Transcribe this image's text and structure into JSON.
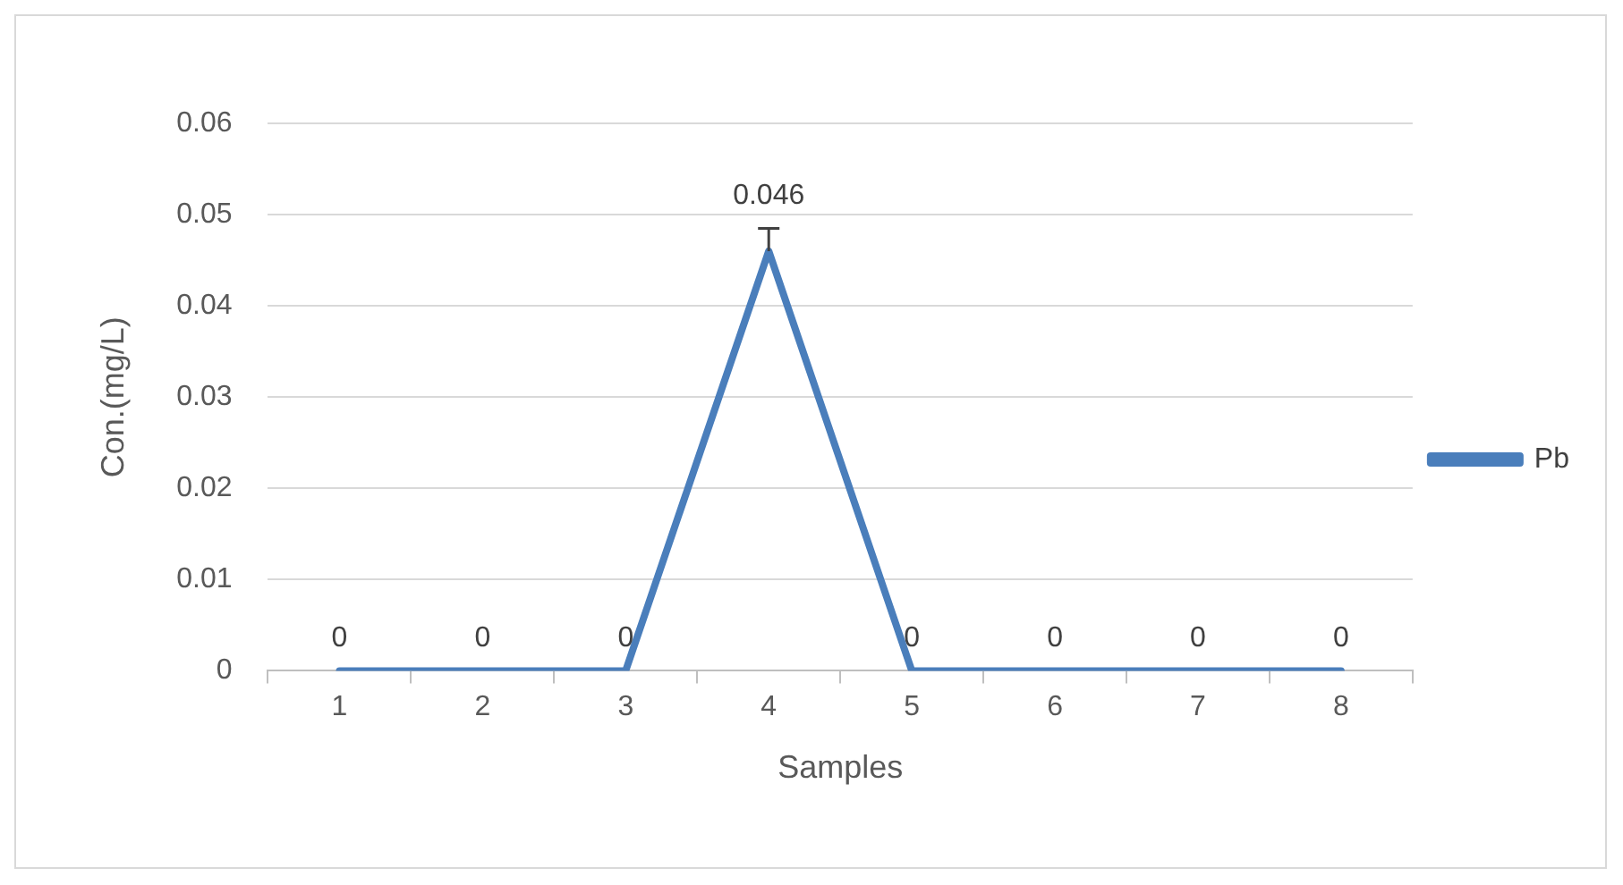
{
  "chart_data": {
    "type": "line",
    "xlabel": "Samples",
    "ylabel": "Con.(mg/L)",
    "categories": [
      "1",
      "2",
      "3",
      "4",
      "5",
      "6",
      "7",
      "8"
    ],
    "series": [
      {
        "name": "Pb",
        "color": "#4a7ebb",
        "values": [
          0,
          0,
          0,
          0.046,
          0,
          0,
          0,
          0
        ],
        "errors": [
          null,
          null,
          null,
          [
            0.046,
            0.0485
          ],
          null,
          null,
          null,
          null
        ]
      }
    ],
    "ylim": [
      0,
      0.06
    ],
    "yticks": [
      0,
      0.01,
      0.02,
      0.03,
      0.04,
      0.05,
      0.06
    ],
    "grid": "y",
    "legend": "right",
    "data_labels": true,
    "marker": "none",
    "line_style": "solid"
  }
}
